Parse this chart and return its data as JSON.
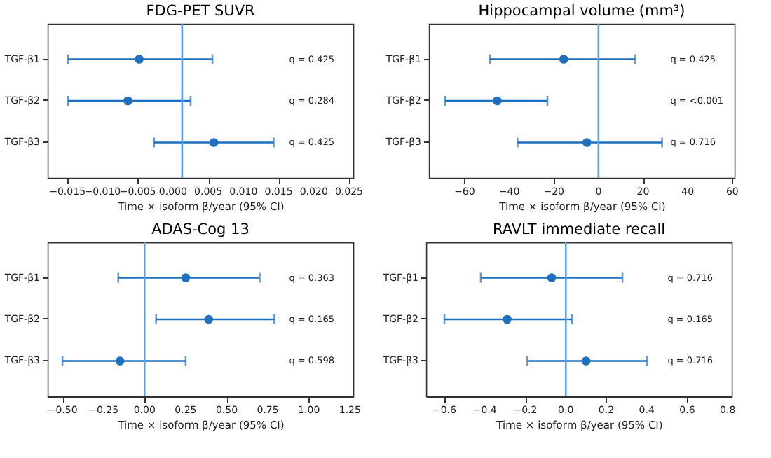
{
  "chart_data": [
    {
      "type": "scatter",
      "orientation": "horizontal",
      "title": "FDG-PET SUVR",
      "xlabel": "Time × isoform β/year (95% CI)",
      "categories": [
        "TGF-β1",
        "TGF-β2",
        "TGF-β3"
      ],
      "series": [
        {
          "color": "#1f6fbf",
          "values": [
            -0.0048,
            -0.0064,
            0.0058
          ],
          "errors": [
            [
              -0.0149,
              0.0056
            ],
            [
              -0.0149,
              0.0025
            ],
            [
              -0.0027,
              0.0143
            ]
          ]
        }
      ],
      "xlim": [
        -0.0178,
        0.0256
      ],
      "xticks": [
        {
          "value": -0.015,
          "label": "−0.015"
        },
        {
          "value": -0.01,
          "label": "−0.010"
        },
        {
          "value": -0.005,
          "label": "−0.005"
        },
        {
          "value": 0,
          "label": "0.000"
        },
        {
          "value": 0.005,
          "label": "0.005"
        },
        {
          "value": 0.01,
          "label": "0.010"
        },
        {
          "value": 0.015,
          "label": "0.015"
        },
        {
          "value": 0.02,
          "label": "0.020"
        },
        {
          "value": 0.025,
          "label": "0.025"
        }
      ],
      "ref_lines": [
        {
          "axis": "x",
          "value": 0.0013,
          "color": "#5ba3e0"
        }
      ],
      "annotations": [
        "q = 0.425",
        "q = 0.284",
        "q = 0.425"
      ],
      "grid": false,
      "marker": "circle"
    },
    {
      "type": "scatter",
      "orientation": "horizontal",
      "title": "Hippocampal volume (mm³)",
      "xlabel": "Time × isoform β/year (95% CI)",
      "categories": [
        "TGF-β1",
        "TGF-β2",
        "TGF-β3"
      ],
      "series": [
        {
          "color": "#1f6fbf",
          "values": [
            -15.6,
            -45.4,
            -5.2
          ],
          "errors": [
            [
              -48.7,
              16.5
            ],
            [
              -68.7,
              -22.9
            ],
            [
              -36.3,
              28.5
            ]
          ]
        }
      ],
      "xlim": [
        -76,
        61
      ],
      "xticks": [
        {
          "value": -60,
          "label": "−60"
        },
        {
          "value": -40,
          "label": "−40"
        },
        {
          "value": -20,
          "label": "−20"
        },
        {
          "value": 0,
          "label": "0"
        },
        {
          "value": 20,
          "label": "20"
        },
        {
          "value": 40,
          "label": "40"
        },
        {
          "value": 60,
          "label": "60"
        }
      ],
      "ref_lines": [
        {
          "axis": "x",
          "value": 0,
          "color": "#5ba3e0"
        }
      ],
      "annotations": [
        "q = 0.425",
        "q = <0.001",
        "q = 0.716"
      ],
      "grid": false,
      "marker": "circle"
    },
    {
      "type": "scatter",
      "orientation": "horizontal",
      "title": "ADAS-Cog 13",
      "xlabel": "Time × isoform β/year (95% CI)",
      "categories": [
        "TGF-β1",
        "TGF-β2",
        "TGF-β3"
      ],
      "series": [
        {
          "color": "#1f6fbf",
          "values": [
            0.25,
            0.39,
            -0.15
          ],
          "errors": [
            [
              -0.16,
              0.7
            ],
            [
              0.07,
              0.79
            ],
            [
              -0.5,
              0.25
            ]
          ]
        }
      ],
      "xlim": [
        -0.59,
        1.27
      ],
      "xticks": [
        {
          "value": -0.5,
          "label": "−0.50"
        },
        {
          "value": -0.25,
          "label": "−0.25"
        },
        {
          "value": 0,
          "label": "0.00"
        },
        {
          "value": 0.25,
          "label": "0.25"
        },
        {
          "value": 0.5,
          "label": "0.50"
        },
        {
          "value": 0.75,
          "label": "0.75"
        },
        {
          "value": 1,
          "label": "1.00"
        },
        {
          "value": 1.25,
          "label": "1.25"
        }
      ],
      "ref_lines": [
        {
          "axis": "x",
          "value": 0,
          "color": "#5ba3e0"
        }
      ],
      "annotations": [
        "q = 0.363",
        "q = 0.165",
        "q = 0.598"
      ],
      "grid": false,
      "marker": "circle"
    },
    {
      "type": "scatter",
      "orientation": "horizontal",
      "title": "RAVLT immediate recall",
      "xlabel": "Time × isoform β/year (95% CI)",
      "categories": [
        "TGF-β1",
        "TGF-β2",
        "TGF-β3"
      ],
      "series": [
        {
          "color": "#1f6fbf",
          "values": [
            -0.07,
            -0.29,
            0.1
          ],
          "errors": [
            [
              -0.42,
              0.28
            ],
            [
              -0.6,
              0.03
            ],
            [
              -0.19,
              0.4
            ]
          ]
        }
      ],
      "xlim": [
        -0.69,
        0.82
      ],
      "xticks": [
        {
          "value": -0.6,
          "label": "−0.6"
        },
        {
          "value": -0.4,
          "label": "−0.4"
        },
        {
          "value": -0.2,
          "label": "−0.2"
        },
        {
          "value": 0,
          "label": "0.0"
        },
        {
          "value": 0.2,
          "label": "0.2"
        },
        {
          "value": 0.4,
          "label": "0.4"
        },
        {
          "value": 0.6,
          "label": "0.6"
        },
        {
          "value": 0.8,
          "label": "0.8"
        }
      ],
      "ref_lines": [
        {
          "axis": "x",
          "value": 0,
          "color": "#5ba3e0"
        }
      ],
      "annotations": [
        "q = 0.716",
        "q = 0.165",
        "q = 0.716"
      ],
      "grid": false,
      "marker": "circle"
    }
  ]
}
